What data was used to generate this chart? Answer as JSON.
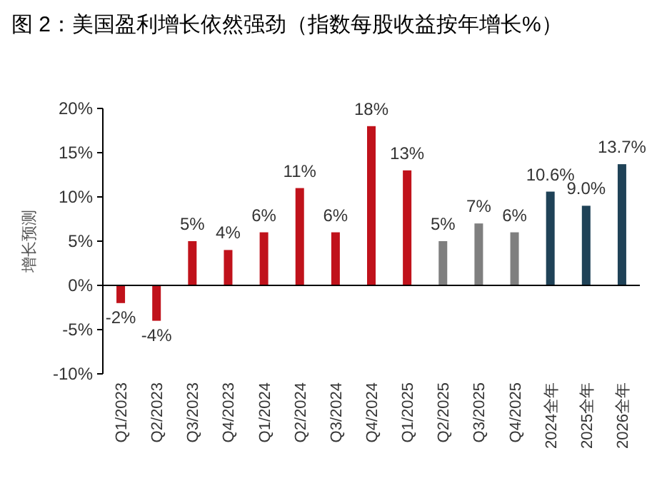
{
  "chart_data": {
    "type": "bar",
    "title": "图 2：美国盈利增长依然强劲（指数每股收益按年增长%）",
    "ylabel": "增长预测",
    "categories": [
      "Q1/2023",
      "Q2/2023",
      "Q3/2023",
      "Q4/2023",
      "Q1/2024",
      "Q2/2024",
      "Q3/2024",
      "Q4/2024",
      "Q1/2025",
      "Q2/2025",
      "Q3/2025",
      "Q4/2025",
      "2024全年",
      "2025全年",
      "2026全年"
    ],
    "values": [
      -2,
      -4,
      5,
      4,
      6,
      11,
      6,
      18,
      13,
      5,
      7,
      6,
      10.6,
      9.0,
      13.7
    ],
    "value_labels": [
      "-2%",
      "-4%",
      "5%",
      "4%",
      "6%",
      "11%",
      "6%",
      "18%",
      "13%",
      "5%",
      "7%",
      "6%",
      "10.6%",
      "9.0%",
      "13.7%"
    ],
    "colors": [
      "#c0121b",
      "#c0121b",
      "#c0121b",
      "#c0121b",
      "#c0121b",
      "#c0121b",
      "#c0121b",
      "#c0121b",
      "#c0121b",
      "#7f7f7f",
      "#7f7f7f",
      "#7f7f7f",
      "#1f4257",
      "#1f4257",
      "#1f4257"
    ],
    "ylim": [
      -10,
      20
    ],
    "yticks": [
      {
        "value": -10,
        "label": "-10%"
      },
      {
        "value": -5,
        "label": "-5%"
      },
      {
        "value": 0,
        "label": "0%"
      },
      {
        "value": 5,
        "label": "5%"
      },
      {
        "value": 10,
        "label": "10%"
      },
      {
        "value": 15,
        "label": "15%"
      },
      {
        "value": 20,
        "label": "20%"
      }
    ]
  }
}
